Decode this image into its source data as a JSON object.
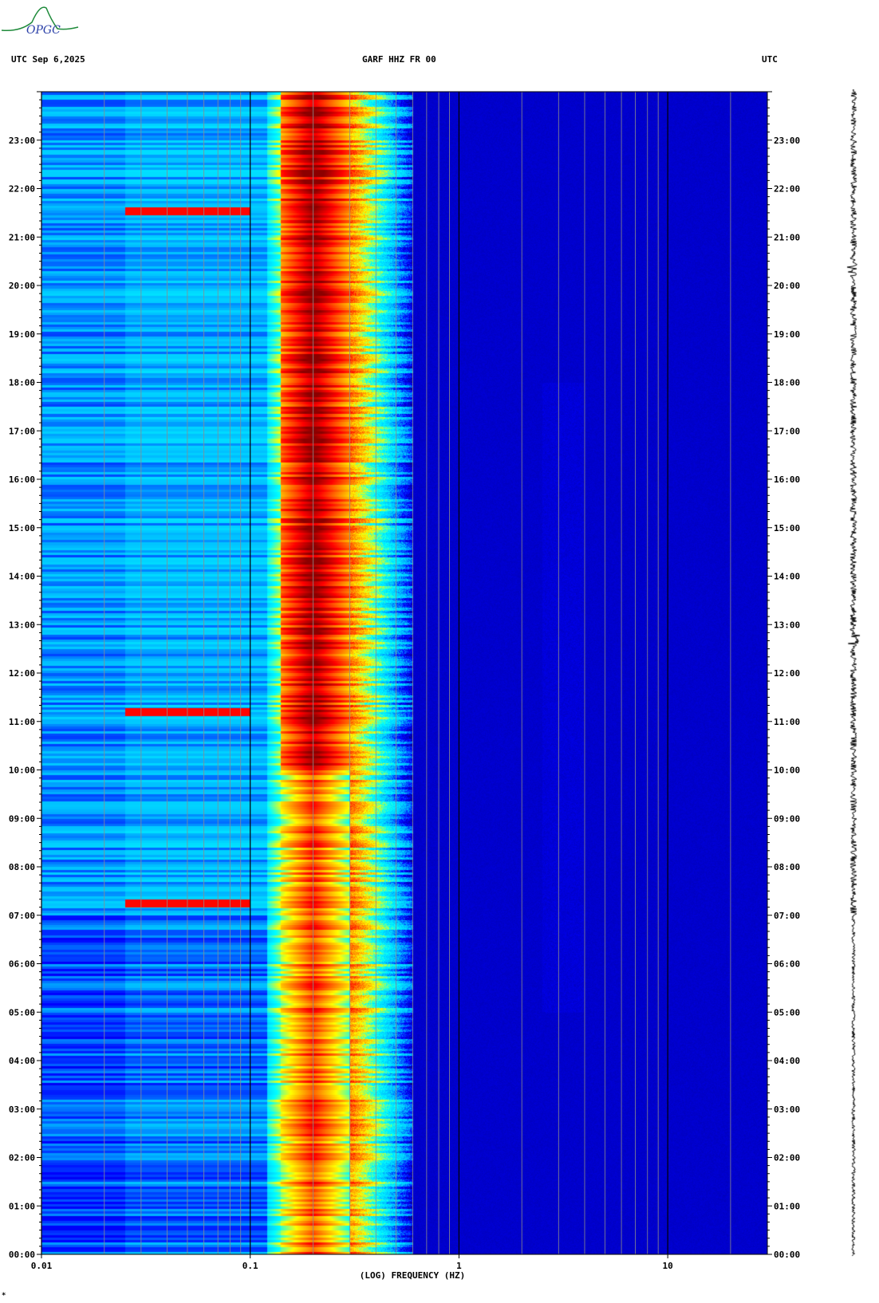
{
  "header": {
    "left_label": "UTC  Sep 6,2025",
    "center_label": "GARF HHZ FR 00",
    "right_label": "UTC"
  },
  "logo": {
    "text": "OPGC"
  },
  "footer_mark": "*",
  "chart_data": {
    "type": "heatmap",
    "title": "GARF HHZ FR 00",
    "date": "Sep 6,2025",
    "xlabel": "(LOG) FREQUENCY (HZ)",
    "ylabel": "UTC",
    "x_scale": "log",
    "xlim": [
      0.01,
      30
    ],
    "x_tick_labels": [
      "0.01",
      "0.1",
      "1",
      "10"
    ],
    "x_ticks": [
      0.01,
      0.1,
      1,
      10
    ],
    "ylim_hours": [
      0,
      24
    ],
    "y_tick_labels": [
      "00:00",
      "01:00",
      "02:00",
      "03:00",
      "04:00",
      "05:00",
      "06:00",
      "07:00",
      "08:00",
      "09:00",
      "10:00",
      "11:00",
      "12:00",
      "13:00",
      "14:00",
      "15:00",
      "16:00",
      "17:00",
      "18:00",
      "19:00",
      "20:00",
      "21:00",
      "22:00",
      "23:00"
    ],
    "colormap": [
      "#00008b",
      "#0000ff",
      "#00bfff",
      "#00ffff",
      "#ffff00",
      "#ff8000",
      "#ff0000",
      "#8b0000"
    ],
    "microseism_band_hz": [
      0.14,
      0.3
    ],
    "microseism_peak_hz": 0.2,
    "transient_events_utc": [
      "07:15",
      "11:12",
      "21:32"
    ],
    "grid": true
  }
}
